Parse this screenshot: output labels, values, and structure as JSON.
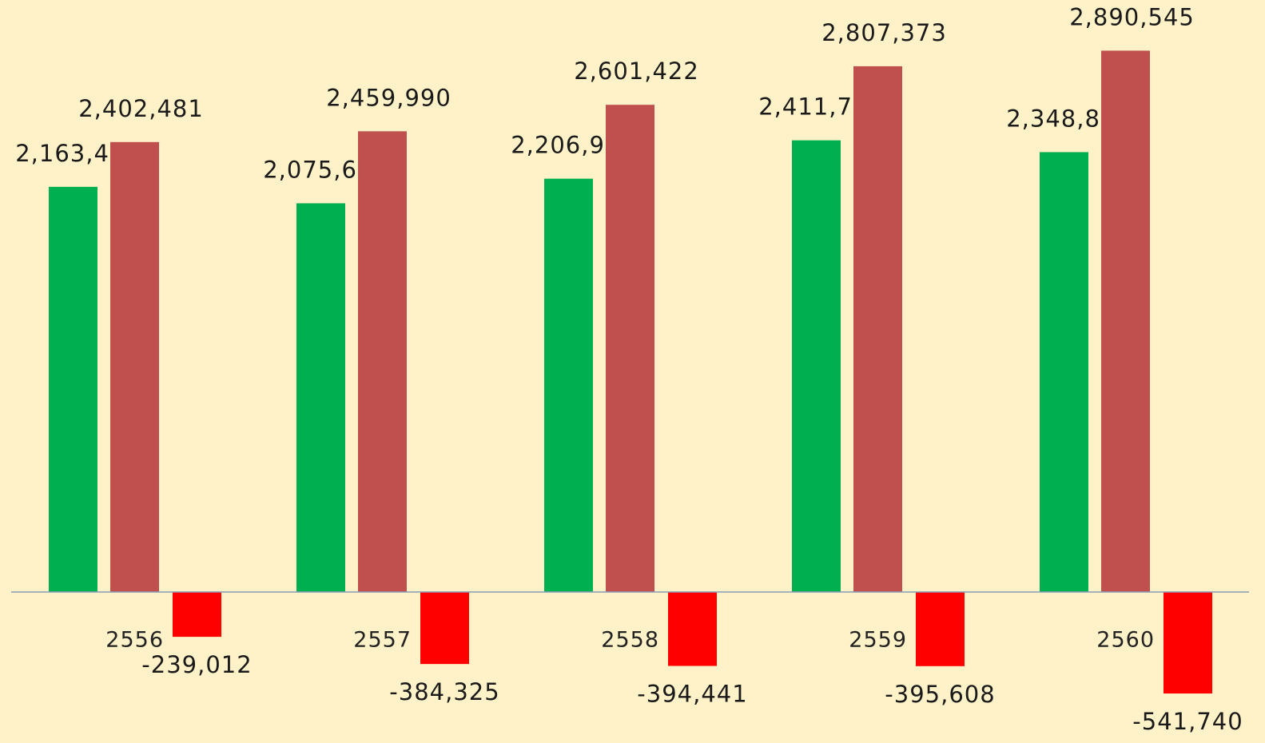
{
  "chart_data": {
    "type": "bar",
    "categories": [
      "2556",
      "2557",
      "2558",
      "2559",
      "2560"
    ],
    "series": [
      {
        "color": "#00b050",
        "values": [
          2163469,
          2075665,
          2206981,
          2411765,
          2348805
        ],
        "value_labels": [
          "2,163,469",
          "2,075,665",
          "2,206,981",
          "2,411,765",
          "2,348,805"
        ]
      },
      {
        "color": "#c0504d",
        "values": [
          2402481,
          2459990,
          2601422,
          2807373,
          2890545
        ],
        "value_labels": [
          "2,402,481",
          "2,459,990",
          "2,601,422",
          "2,807,373",
          "2,890,545"
        ]
      },
      {
        "color": "#ff0000",
        "values": [
          -239012,
          -384325,
          -394441,
          -395608,
          -541740
        ],
        "value_labels": [
          "-239,012",
          "-384,325",
          "-394,441",
          "-395,608",
          "-541,740"
        ]
      }
    ],
    "ylim": [
      -806000,
      3161000
    ]
  }
}
